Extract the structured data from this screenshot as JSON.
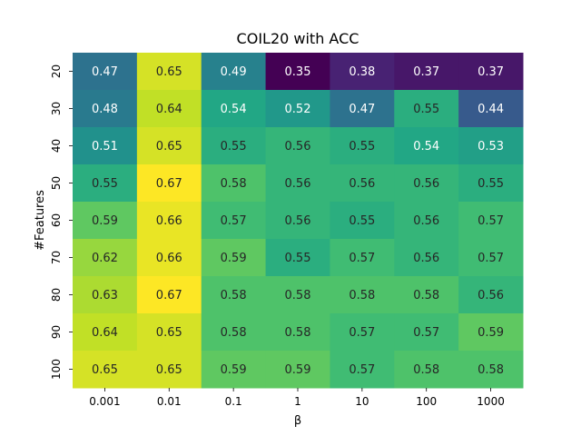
{
  "chart_data": {
    "type": "heatmap",
    "title": "COIL20 with ACC",
    "xlabel": "β",
    "ylabel": "#Features",
    "x_categories": [
      "0.001",
      "0.01",
      "0.1",
      "1",
      "10",
      "100",
      "1000"
    ],
    "y_categories": [
      "20",
      "30",
      "40",
      "50",
      "60",
      "70",
      "80",
      "90",
      "100"
    ],
    "values": [
      [
        0.47,
        0.65,
        0.49,
        0.35,
        0.38,
        0.37,
        0.37
      ],
      [
        0.48,
        0.64,
        0.54,
        0.52,
        0.47,
        0.55,
        0.44
      ],
      [
        0.51,
        0.65,
        0.55,
        0.56,
        0.55,
        0.54,
        0.53
      ],
      [
        0.55,
        0.67,
        0.58,
        0.56,
        0.56,
        0.56,
        0.55
      ],
      [
        0.59,
        0.66,
        0.57,
        0.56,
        0.55,
        0.56,
        0.57
      ],
      [
        0.62,
        0.66,
        0.59,
        0.55,
        0.57,
        0.56,
        0.57
      ],
      [
        0.63,
        0.67,
        0.58,
        0.58,
        0.58,
        0.58,
        0.56
      ],
      [
        0.64,
        0.65,
        0.58,
        0.58,
        0.57,
        0.57,
        0.59
      ],
      [
        0.65,
        0.65,
        0.59,
        0.59,
        0.57,
        0.58,
        0.58
      ]
    ],
    "colormap": "viridis",
    "value_range": [
      0.35,
      0.67
    ]
  }
}
